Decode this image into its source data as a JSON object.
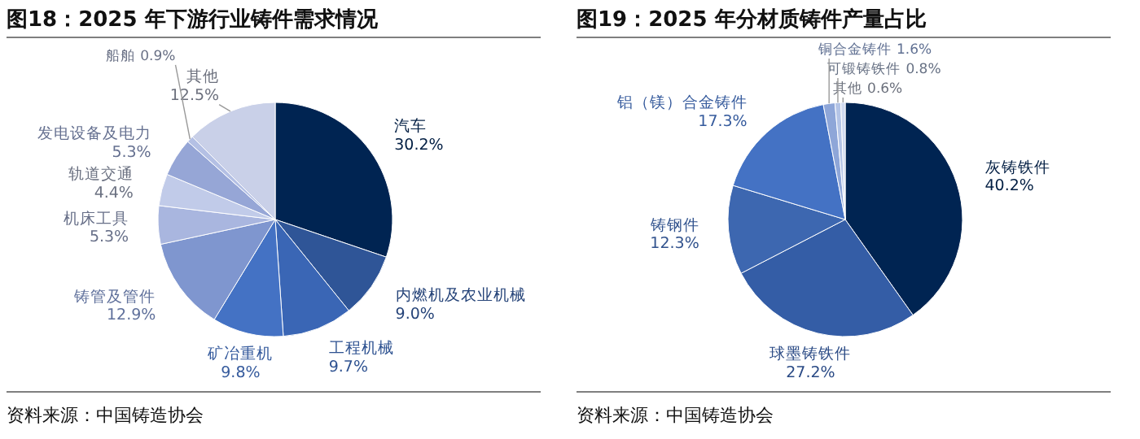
{
  "chart_data": [
    {
      "type": "pie",
      "title": "图18：2025 年下游行业铸件需求情况",
      "categories": [
        "汽车",
        "内燃机及农业机械",
        "工程机械",
        "矿冶重机",
        "铸管及管件",
        "机床工具",
        "轨道交通",
        "发电设备及电力",
        "船舶",
        "其他"
      ],
      "values": [
        30.2,
        9.0,
        9.7,
        9.8,
        12.9,
        5.3,
        4.4,
        5.3,
        0.9,
        12.5
      ],
      "value_labels": [
        "30.2%",
        "9.0%",
        "9.7%",
        "9.8%",
        "12.9%",
        "5.3%",
        "4.4%",
        "5.3%",
        "0.9%",
        "12.5%"
      ],
      "colors": [
        "#002452",
        "#2f5597",
        "#3a66b5",
        "#4472c4",
        "#7f96cf",
        "#a9b6df",
        "#c1cbe9",
        "#96a6d6",
        "#b4c0e4",
        "#c9d0e8"
      ],
      "annotations": [
        "资料来源：中国铸造协会"
      ]
    },
    {
      "type": "pie",
      "title": "图19：2025 年分材质铸件产量占比",
      "categories": [
        "灰铸铁件",
        "球墨铸铁件",
        "铸钢件",
        "铝（镁）合金铸件",
        "铜合金铸件",
        "可锻铸铁件",
        "其他"
      ],
      "values": [
        40.2,
        27.2,
        12.3,
        17.3,
        1.6,
        0.8,
        0.6
      ],
      "value_labels": [
        "40.2%",
        "27.2%",
        "12.3%",
        "17.3%",
        "1.6%",
        "0.8%",
        "0.6%"
      ],
      "colors": [
        "#002452",
        "#345da6",
        "#3d67b0",
        "#4472c4",
        "#8ea6d8",
        "#b4c4e6",
        "#d0daf0"
      ],
      "annotations": [
        "资料来源：中国铸造协会"
      ]
    }
  ]
}
